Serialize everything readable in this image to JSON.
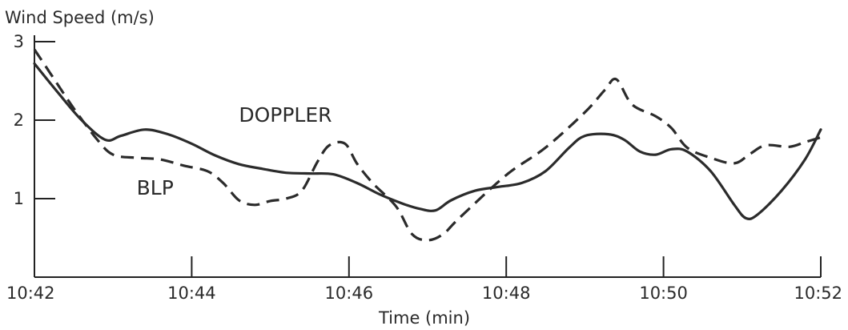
{
  "chart_data": {
    "type": "line",
    "title": "",
    "ylabel": "Wind Speed (m/s)",
    "xlabel": "Time (min)",
    "ylim": [
      0,
      3
    ],
    "xlim": [
      0,
      10
    ],
    "xticks": [
      {
        "value": 0,
        "label": "10:42"
      },
      {
        "value": 2,
        "label": "10:44"
      },
      {
        "value": 4,
        "label": "10:46"
      },
      {
        "value": 6,
        "label": "10:48"
      },
      {
        "value": 8,
        "label": "10:50"
      },
      {
        "value": 10,
        "label": "10:52"
      }
    ],
    "yticks": [
      {
        "value": 1,
        "label": "1"
      },
      {
        "value": 2,
        "label": "2"
      },
      {
        "value": 3,
        "label": "3"
      }
    ],
    "grid": false,
    "series": [
      {
        "name": "DOPPLER",
        "style": "solid",
        "x": [
          0,
          0.3,
          0.6,
          0.9,
          1.1,
          1.4,
          1.7,
          2.0,
          2.3,
          2.6,
          2.9,
          3.2,
          3.5,
          3.8,
          4.1,
          4.4,
          4.7,
          4.9,
          5.1,
          5.3,
          5.6,
          5.9,
          6.2,
          6.5,
          6.8,
          7.0,
          7.3,
          7.5,
          7.7,
          7.9,
          8.1,
          8.3,
          8.6,
          8.9,
          9.05,
          9.2,
          9.5,
          9.8,
          10.0
        ],
        "values": [
          2.72,
          2.35,
          2.0,
          1.75,
          1.8,
          1.88,
          1.82,
          1.7,
          1.55,
          1.44,
          1.38,
          1.33,
          1.32,
          1.31,
          1.2,
          1.05,
          0.93,
          0.87,
          0.85,
          0.98,
          1.1,
          1.15,
          1.2,
          1.35,
          1.65,
          1.8,
          1.82,
          1.75,
          1.6,
          1.56,
          1.63,
          1.6,
          1.35,
          0.92,
          0.75,
          0.8,
          1.1,
          1.5,
          1.88
        ]
      },
      {
        "name": "BLP",
        "style": "dashed",
        "x": [
          0,
          0.2,
          0.5,
          0.8,
          1.0,
          1.3,
          1.6,
          1.9,
          2.2,
          2.4,
          2.6,
          2.8,
          3.0,
          3.2,
          3.4,
          3.6,
          3.75,
          3.95,
          4.1,
          4.3,
          4.6,
          4.8,
          5.0,
          5.2,
          5.4,
          6.0,
          6.5,
          7.0,
          7.25,
          7.4,
          7.6,
          7.9,
          8.1,
          8.3,
          8.6,
          8.9,
          9.1,
          9.3,
          9.6,
          9.8,
          10.0
        ],
        "values": [
          2.9,
          2.6,
          2.15,
          1.75,
          1.56,
          1.52,
          1.5,
          1.42,
          1.35,
          1.2,
          0.98,
          0.92,
          0.97,
          1.0,
          1.1,
          1.47,
          1.68,
          1.7,
          1.45,
          1.2,
          0.9,
          0.55,
          0.47,
          0.55,
          0.75,
          1.3,
          1.65,
          2.1,
          2.38,
          2.52,
          2.2,
          2.05,
          1.9,
          1.65,
          1.52,
          1.45,
          1.57,
          1.68,
          1.66,
          1.72,
          1.78
        ]
      }
    ],
    "annotations": [
      {
        "text": "DOPPLER",
        "x": 2.6,
        "y": 1.98
      },
      {
        "text": "BLP",
        "x": 1.3,
        "y": 1.05
      }
    ]
  }
}
